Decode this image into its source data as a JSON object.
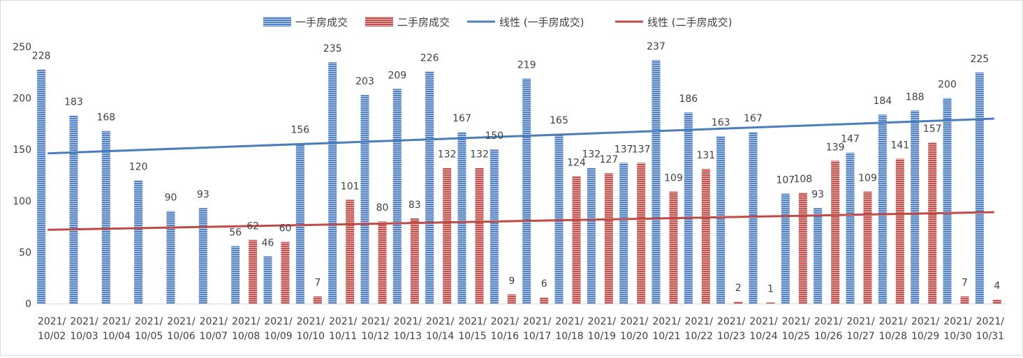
{
  "chart_data": {
    "type": "bar",
    "categories": [
      [
        "2021/",
        "10/02"
      ],
      [
        "2021/",
        "10/03"
      ],
      [
        "2021/",
        "10/04"
      ],
      [
        "2021/",
        "10/05"
      ],
      [
        "2021/",
        "10/06"
      ],
      [
        "2021/",
        "10/07"
      ],
      [
        "2021/",
        "10/08"
      ],
      [
        "2021/",
        "10/09"
      ],
      [
        "2021/",
        "10/10"
      ],
      [
        "2021/",
        "10/11"
      ],
      [
        "2021/",
        "10/12"
      ],
      [
        "2021/",
        "10/13"
      ],
      [
        "2021/",
        "10/14"
      ],
      [
        "2021/",
        "10/15"
      ],
      [
        "2021/",
        "10/16"
      ],
      [
        "2021/",
        "10/17"
      ],
      [
        "2021/",
        "10/18"
      ],
      [
        "2021/",
        "10/19"
      ],
      [
        "2021/",
        "10/20"
      ],
      [
        "2021/",
        "10/21"
      ],
      [
        "2021/",
        "10/22"
      ],
      [
        "2021/",
        "10/23"
      ],
      [
        "2021/",
        "10/24"
      ],
      [
        "2021/",
        "10/25"
      ],
      [
        "2021/",
        "10/26"
      ],
      [
        "2021/",
        "10/27"
      ],
      [
        "2021/",
        "10/28"
      ],
      [
        "2021/",
        "10/29"
      ],
      [
        "2021/",
        "10/30"
      ],
      [
        "2021/",
        "10/31"
      ]
    ],
    "series": [
      {
        "name": "一手房成交",
        "color": "#4f7fc1",
        "values": [
          228,
          183,
          168,
          120,
          90,
          93,
          56,
          46,
          156,
          235,
          203,
          209,
          226,
          167,
          150,
          219,
          165,
          132,
          137,
          237,
          186,
          163,
          167,
          107,
          93,
          147,
          184,
          188,
          200,
          225
        ]
      },
      {
        "name": "二手房成交",
        "color": "#c0504d",
        "values": [
          null,
          null,
          null,
          null,
          null,
          null,
          62,
          60,
          7,
          101,
          80,
          83,
          132,
          132,
          9,
          6,
          124,
          127,
          137,
          109,
          131,
          2,
          1,
          108,
          139,
          109,
          141,
          157,
          7,
          4
        ]
      }
    ],
    "trendlines": [
      {
        "name": "线性 (一手房成交)",
        "color": "#4a7ebb",
        "start": 146.2,
        "end": 180.0
      },
      {
        "name": "线性 (二手房成交)",
        "color": "#be4b48",
        "start": 71.8,
        "end": 89.0
      }
    ],
    "ylim": [
      0,
      250
    ],
    "yticks": [
      0,
      50,
      100,
      150,
      200,
      250
    ],
    "legend_position": "top",
    "grid": false,
    "title": "",
    "xlabel": "",
    "ylabel": ""
  }
}
